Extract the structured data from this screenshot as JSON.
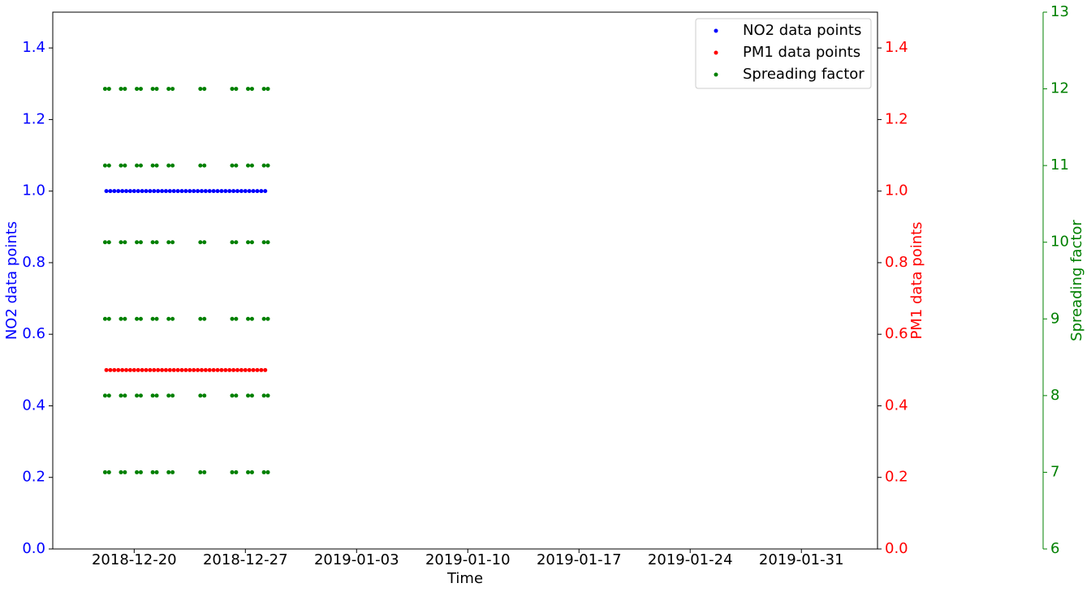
{
  "chart_data": {
    "type": "scatter",
    "xlabel": "Time",
    "ylabel": "NO2 data points",
    "y2label": "PM1 data points",
    "y3label": "Spreading factor",
    "xlim": [
      "2018-12-14T21:00",
      "2019-02-04T19:00"
    ],
    "xticks": [
      "2018-12-20",
      "2018-12-27",
      "2019-01-03",
      "2019-01-10",
      "2019-01-17",
      "2019-01-24",
      "2019-01-31"
    ],
    "ylim": [
      0,
      1.5
    ],
    "yticks": [
      {
        "value": 0,
        "label": "0.0"
      },
      0.2,
      0.4,
      0.6,
      0.8,
      {
        "value": 1,
        "label": "1.0"
      },
      1.2,
      1.4
    ],
    "y2lim": [
      0,
      1.5
    ],
    "y2ticks": [
      {
        "value": 0,
        "label": "0.0"
      },
      0.2,
      0.4,
      0.6,
      0.8,
      {
        "value": 1,
        "label": "1.0"
      },
      1.2,
      1.4
    ],
    "y3lim": [
      6,
      13
    ],
    "y3ticks": [
      6,
      7,
      8,
      9,
      10,
      11,
      12,
      13
    ],
    "legend": "upper right",
    "x": [
      "2018-12-18T06:00",
      "2018-12-18T12:00",
      "2018-12-18T18:00",
      "2018-12-19T00:00",
      "2018-12-19T06:00",
      "2018-12-19T12:00",
      "2018-12-19T18:00",
      "2018-12-20T00:00",
      "2018-12-20T06:00",
      "2018-12-20T12:00",
      "2018-12-20T18:00",
      "2018-12-21T00:00",
      "2018-12-21T06:00",
      "2018-12-21T12:00",
      "2018-12-21T18:00",
      "2018-12-22T00:00",
      "2018-12-22T06:00",
      "2018-12-22T12:00",
      "2018-12-22T18:00",
      "2018-12-23T00:00",
      "2018-12-23T06:00",
      "2018-12-23T12:00",
      "2018-12-23T18:00",
      "2018-12-24T00:00",
      "2018-12-24T06:00",
      "2018-12-24T12:00",
      "2018-12-24T18:00",
      "2018-12-25T00:00",
      "2018-12-25T06:00",
      "2018-12-25T12:00",
      "2018-12-25T18:00",
      "2018-12-26T00:00",
      "2018-12-26T06:00",
      "2018-12-26T12:00",
      "2018-12-26T18:00",
      "2018-12-27T00:00",
      "2018-12-27T06:00",
      "2018-12-27T12:00",
      "2018-12-27T18:00",
      "2018-12-28T00:00",
      "2018-12-28T06:00"
    ],
    "series": [
      {
        "name": "NO2 data points",
        "color": "#0000ff",
        "axis": "y",
        "values": [
          1,
          1,
          1,
          1,
          1,
          1,
          1,
          1,
          1,
          1,
          1,
          1,
          1,
          1,
          1,
          1,
          1,
          1,
          1,
          1,
          1,
          1,
          1,
          1,
          1,
          1,
          1,
          1,
          1,
          1,
          1,
          1,
          1,
          1,
          1,
          1,
          1,
          1,
          1,
          1,
          1
        ]
      },
      {
        "name": "PM1 data points",
        "color": "#ff0000",
        "axis": "y2",
        "values": [
          0.5,
          0.5,
          0.5,
          0.5,
          0.5,
          0.5,
          0.5,
          0.5,
          0.5,
          0.5,
          0.5,
          0.5,
          0.5,
          0.5,
          0.5,
          0.5,
          0.5,
          0.5,
          0.5,
          0.5,
          0.5,
          0.5,
          0.5,
          0.5,
          0.5,
          0.5,
          0.5,
          0.5,
          0.5,
          0.5,
          0.5,
          0.5,
          0.5,
          0.5,
          0.5,
          0.5,
          0.5,
          0.5,
          0.5,
          0.5,
          0.5
        ]
      },
      {
        "name": "Spreading factor",
        "color": "#008000",
        "axis": "y3",
        "x": [
          "2018-12-18T04:00",
          "2018-12-18T10:00",
          "2018-12-19T04:00",
          "2018-12-19T10:00",
          "2018-12-20T04:00",
          "2018-12-20T10:00",
          "2018-12-21T04:00",
          "2018-12-21T10:00",
          "2018-12-22T04:00",
          "2018-12-22T10:00",
          "2018-12-24T04:00",
          "2018-12-24T10:00",
          "2018-12-26T04:00",
          "2018-12-26T10:00",
          "2018-12-27T04:00",
          "2018-12-27T10:00",
          "2018-12-28T04:00",
          "2018-12-28T10:00",
          "2018-12-18T04:00",
          "2018-12-18T10:00",
          "2018-12-19T04:00",
          "2018-12-19T10:00",
          "2018-12-20T04:00",
          "2018-12-20T10:00",
          "2018-12-21T04:00",
          "2018-12-21T10:00",
          "2018-12-22T04:00",
          "2018-12-22T10:00",
          "2018-12-24T04:00",
          "2018-12-24T10:00",
          "2018-12-26T04:00",
          "2018-12-26T10:00",
          "2018-12-27T04:00",
          "2018-12-27T10:00",
          "2018-12-28T04:00",
          "2018-12-28T10:00",
          "2018-12-18T04:00",
          "2018-12-18T10:00",
          "2018-12-19T04:00",
          "2018-12-19T10:00",
          "2018-12-20T04:00",
          "2018-12-20T10:00",
          "2018-12-21T04:00",
          "2018-12-21T10:00",
          "2018-12-22T04:00",
          "2018-12-22T10:00",
          "2018-12-24T04:00",
          "2018-12-24T10:00",
          "2018-12-26T04:00",
          "2018-12-26T10:00",
          "2018-12-27T04:00",
          "2018-12-27T10:00",
          "2018-12-28T04:00",
          "2018-12-28T10:00",
          "2018-12-18T04:00",
          "2018-12-18T10:00",
          "2018-12-19T04:00",
          "2018-12-19T10:00",
          "2018-12-20T04:00",
          "2018-12-20T10:00",
          "2018-12-21T04:00",
          "2018-12-21T10:00",
          "2018-12-22T04:00",
          "2018-12-22T10:00",
          "2018-12-24T04:00",
          "2018-12-24T10:00",
          "2018-12-26T04:00",
          "2018-12-26T10:00",
          "2018-12-27T04:00",
          "2018-12-27T10:00",
          "2018-12-28T04:00",
          "2018-12-28T10:00",
          "2018-12-18T04:00",
          "2018-12-18T10:00",
          "2018-12-19T04:00",
          "2018-12-19T10:00",
          "2018-12-20T04:00",
          "2018-12-20T10:00",
          "2018-12-21T04:00",
          "2018-12-21T10:00",
          "2018-12-22T04:00",
          "2018-12-22T10:00",
          "2018-12-24T04:00",
          "2018-12-24T10:00",
          "2018-12-26T04:00",
          "2018-12-26T10:00",
          "2018-12-27T04:00",
          "2018-12-27T10:00",
          "2018-12-28T04:00",
          "2018-12-28T10:00",
          "2018-12-18T04:00",
          "2018-12-18T10:00",
          "2018-12-19T04:00",
          "2018-12-19T10:00",
          "2018-12-20T04:00",
          "2018-12-20T10:00",
          "2018-12-21T04:00",
          "2018-12-21T10:00",
          "2018-12-22T04:00",
          "2018-12-22T10:00",
          "2018-12-24T04:00",
          "2018-12-24T10:00",
          "2018-12-26T04:00",
          "2018-12-26T10:00",
          "2018-12-27T04:00",
          "2018-12-27T10:00",
          "2018-12-28T04:00",
          "2018-12-28T10:00"
        ],
        "values": [
          7,
          7,
          7,
          7,
          7,
          7,
          7,
          7,
          7,
          7,
          7,
          7,
          7,
          7,
          7,
          7,
          7,
          7,
          8,
          8,
          8,
          8,
          8,
          8,
          8,
          8,
          8,
          8,
          8,
          8,
          8,
          8,
          8,
          8,
          8,
          8,
          9,
          9,
          9,
          9,
          9,
          9,
          9,
          9,
          9,
          9,
          9,
          9,
          9,
          9,
          9,
          9,
          9,
          9,
          10,
          10,
          10,
          10,
          10,
          10,
          10,
          10,
          10,
          10,
          10,
          10,
          10,
          10,
          10,
          10,
          10,
          10,
          11,
          11,
          11,
          11,
          11,
          11,
          11,
          11,
          11,
          11,
          11,
          11,
          11,
          11,
          11,
          11,
          11,
          11,
          12,
          12,
          12,
          12,
          12,
          12,
          12,
          12,
          12,
          12,
          12,
          12,
          12,
          12,
          12,
          12,
          12,
          12
        ]
      }
    ]
  }
}
